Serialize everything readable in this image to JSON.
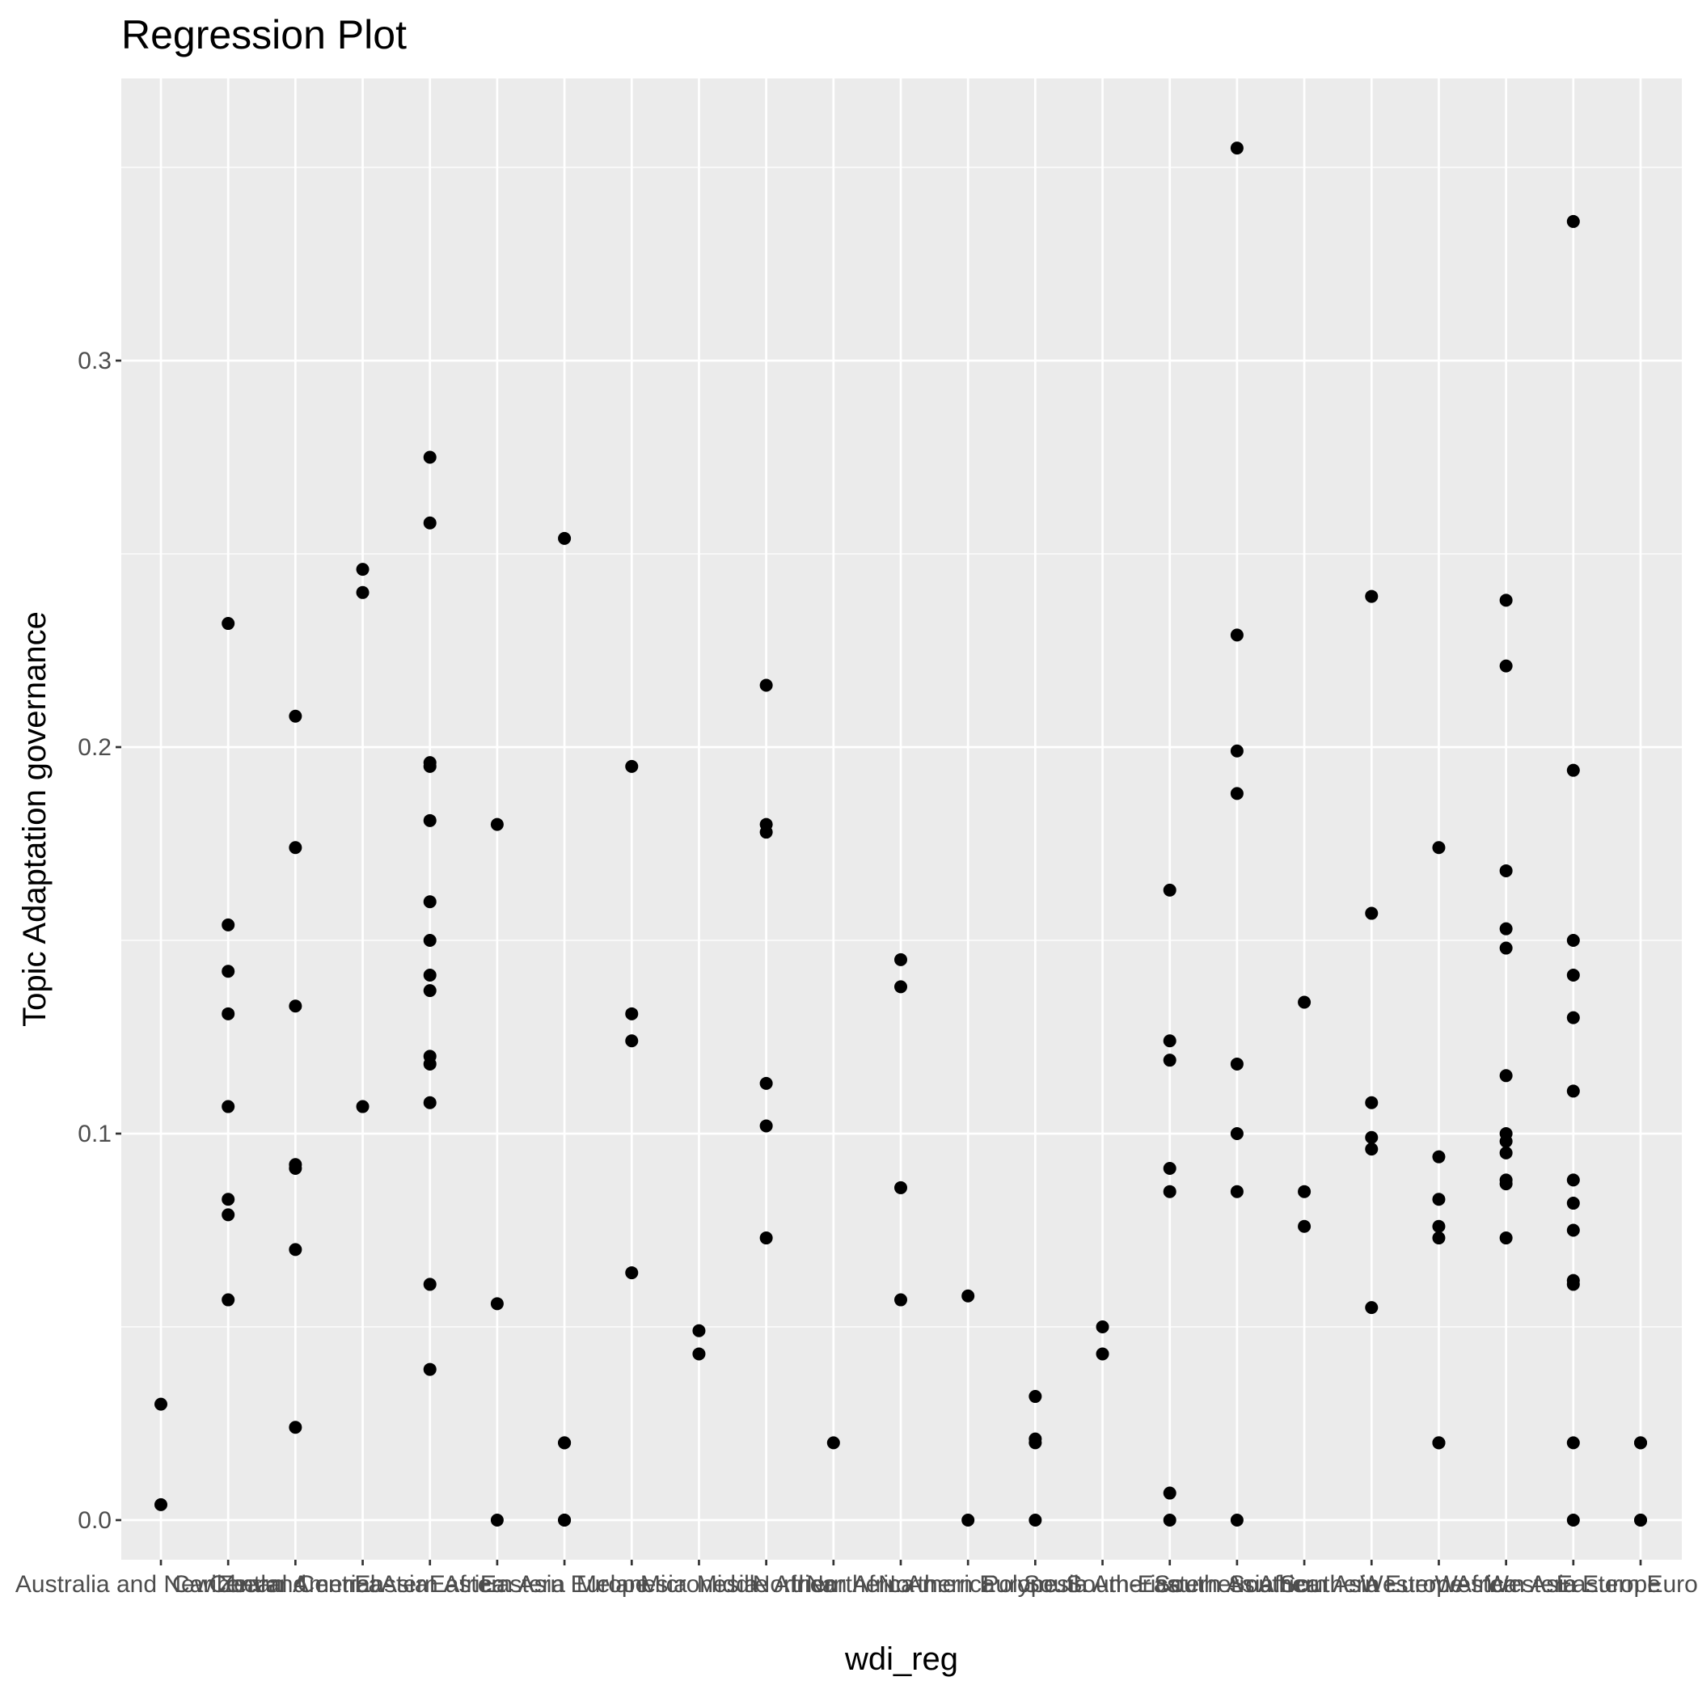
{
  "colors": {
    "panel_background": "#EBEBEB",
    "grid_major": "#FFFFFF",
    "point": "#000000",
    "tick_text": "#4D4D4D",
    "tick_mark": "#333333"
  },
  "chart_data": {
    "type": "scatter",
    "title": "Regression Plot",
    "xlabel": "wdi_reg",
    "ylabel": "Topic Adaptation governance",
    "ylim": [
      -0.017,
      0.37
    ],
    "yticks": [
      0.0,
      0.1,
      0.2,
      0.3
    ],
    "ytick_labels": [
      "0.0",
      "0.1",
      "0.2",
      "0.3"
    ],
    "grid": true,
    "legend": "none",
    "categories": [
      "Australia and New Zealand",
      "Caribbean",
      "Central America",
      "Central Asia",
      "Eastern Africa",
      "Eastern Asia",
      "Eastern Europe",
      "Melanesia",
      "Micronesia",
      "Middle Africa",
      "Northern Africa",
      "Northern America",
      "Northern Europe",
      "Polynesia",
      "South America",
      "South-Eastern Asia",
      "Southern Africa",
      "Southern Asia",
      "Southern Europe",
      "Western Africa",
      "Western Asia",
      "Western Europe",
      "Eastern Europe"
    ],
    "points": [
      {
        "x": "Australia and New Zealand",
        "y": [
          0.03,
          0.004
        ]
      },
      {
        "x": "Caribbean",
        "y": [
          0.232,
          0.154,
          0.142,
          0.131,
          0.107,
          0.083,
          0.079,
          0.057
        ]
      },
      {
        "x": "Central America",
        "y": [
          0.208,
          0.174,
          0.133,
          0.092,
          0.091,
          0.07,
          0.024
        ]
      },
      {
        "x": "Central Asia",
        "y": [
          0.246,
          0.24,
          0.107
        ]
      },
      {
        "x": "Eastern Africa",
        "y": [
          0.275,
          0.258,
          0.196,
          0.195,
          0.181,
          0.16,
          0.15,
          0.141,
          0.137,
          0.12,
          0.118,
          0.108,
          0.061,
          0.039
        ]
      },
      {
        "x": "Eastern Asia",
        "y": [
          0.18,
          0.056,
          0.0
        ]
      },
      {
        "x": "Eastern Europe",
        "y": [
          0.254,
          0.02,
          0.02,
          0.0,
          0.0
        ]
      },
      {
        "x": "Melanesia",
        "y": [
          0.195,
          0.131,
          0.124,
          0.064
        ]
      },
      {
        "x": "Micronesia",
        "y": [
          0.049,
          0.043
        ]
      },
      {
        "x": "Middle Africa",
        "y": [
          0.216,
          0.18,
          0.178,
          0.113,
          0.102,
          0.073
        ]
      },
      {
        "x": "Northern Africa",
        "y": [
          0.02
        ]
      },
      {
        "x": "Northern America",
        "y": [
          0.145,
          0.138,
          0.086,
          0.057
        ]
      },
      {
        "x": "Northern Europe",
        "y": [
          0.058,
          0.0
        ]
      },
      {
        "x": "Polynesia",
        "y": [
          0.032,
          0.021,
          0.02,
          0.0
        ]
      },
      {
        "x": "South America",
        "y": [
          0.05,
          0.043
        ]
      },
      {
        "x": "South-Eastern Asia",
        "y": [
          0.163,
          0.124,
          0.119,
          0.091,
          0.085,
          0.007,
          0.0
        ]
      },
      {
        "x": "Southern Africa",
        "y": [
          0.355,
          0.229,
          0.199,
          0.188,
          0.118,
          0.1,
          0.085,
          0.0
        ]
      },
      {
        "x": "Southern Asia",
        "y": [
          0.134,
          0.085,
          0.076
        ]
      },
      {
        "x": "Southern Europe",
        "y": [
          0.239,
          0.157,
          0.108,
          0.099,
          0.096,
          0.055
        ]
      },
      {
        "x": "Western Africa",
        "y": [
          0.174,
          0.094,
          0.083,
          0.076,
          0.073,
          0.02,
          0.02
        ]
      },
      {
        "x": "Western Asia",
        "y": [
          0.238,
          0.221,
          0.168,
          0.153,
          0.148,
          0.115,
          0.1,
          0.098,
          0.095,
          0.088,
          0.087,
          0.073
        ]
      },
      {
        "x": "Western Europe",
        "y": [
          0.336,
          0.194,
          0.15,
          0.141,
          0.13,
          0.111,
          0.088,
          0.082,
          0.075,
          0.062,
          0.061,
          0.02,
          0.0
        ]
      },
      {
        "x": "Eastern Europe",
        "y": [
          0.02,
          0.02,
          0.0,
          0.0
        ]
      }
    ]
  }
}
